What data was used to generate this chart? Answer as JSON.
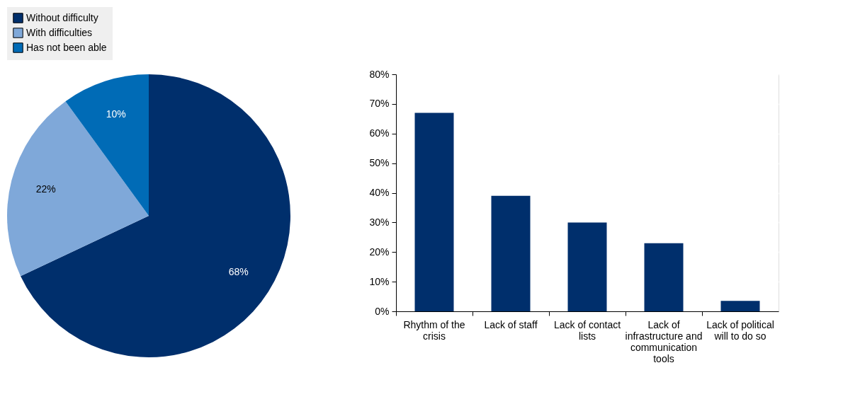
{
  "chart_data": [
    {
      "type": "pie",
      "categories": [
        "Without difficulty",
        "With difficulties",
        "Has not been able"
      ],
      "values": [
        68,
        22,
        10
      ],
      "colors": [
        "#002f6c",
        "#7fa8d9",
        "#006bb6"
      ],
      "value_labels": [
        "68%",
        "22%",
        "10%"
      ],
      "legend": "top left"
    },
    {
      "type": "bar",
      "categories": [
        "Rhythm of the crisis",
        "Lack of staff",
        "Lack of contact lists",
        "Lack of infrastructure and communication tools",
        "Lack of political will to do so"
      ],
      "values": [
        67,
        39,
        30,
        23,
        3.5
      ],
      "color": "#002f6c",
      "ylim": [
        0,
        80
      ],
      "yticks": [
        {
          "value": 0,
          "label": "0%"
        },
        {
          "value": 10,
          "label": "10%"
        },
        {
          "value": 20,
          "label": "20%"
        },
        {
          "value": 30,
          "label": "30%"
        },
        {
          "value": 40,
          "label": "40%"
        },
        {
          "value": 50,
          "label": "50%"
        },
        {
          "value": 60,
          "label": "60%"
        },
        {
          "value": 70,
          "label": "70%"
        },
        {
          "value": 80,
          "label": "80%"
        }
      ],
      "grid": true
    }
  ]
}
